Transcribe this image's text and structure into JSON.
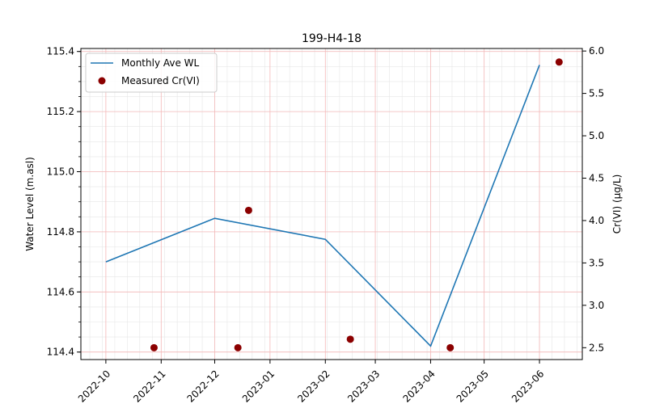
{
  "chart_data": {
    "type": "line",
    "title": "199-H4-18",
    "xlabel": "",
    "ylabel_left": "Water Level (m.asl)",
    "ylabel_right": "Cr(VI) (µg/L)",
    "x_tick_labels": [
      "2022-10",
      "2022-11",
      "2022-12",
      "2023-01",
      "2023-02",
      "2023-03",
      "2023-04",
      "2023-05",
      "2023-06"
    ],
    "x_tick_dates": [
      "2022-10-01",
      "2022-11-01",
      "2022-12-01",
      "2023-01-01",
      "2023-02-01",
      "2023-03-01",
      "2023-04-01",
      "2023-05-01",
      "2023-06-01"
    ],
    "xlim": [
      "2022-09-17",
      "2023-06-25"
    ],
    "ylim_left": [
      114.375,
      115.41
    ],
    "ylim_right": [
      2.36,
      6.03
    ],
    "left_ticks": [
      "114.4",
      "114.6",
      "114.8",
      "115.0",
      "115.2",
      "115.4"
    ],
    "right_ticks": [
      "2.5",
      "3.0",
      "3.5",
      "4.0",
      "4.5",
      "5.0",
      "5.5",
      "6.0"
    ],
    "grid": true,
    "legend_position": "upper-left",
    "series": [
      {
        "name": "Monthly Ave WL",
        "axis": "left",
        "kind": "line",
        "color": "#1f77b4",
        "points": [
          {
            "x": "2022-10-01",
            "y": 114.7
          },
          {
            "x": "2022-12-01",
            "y": 114.845
          },
          {
            "x": "2023-02-01",
            "y": 114.775
          },
          {
            "x": "2023-04-01",
            "y": 114.42
          },
          {
            "x": "2023-06-01",
            "y": 115.355
          }
        ]
      },
      {
        "name": "Measured Cr(VI)",
        "axis": "right",
        "kind": "scatter",
        "color": "#8b0000",
        "points": [
          {
            "x": "2022-10-28",
            "y": 2.5
          },
          {
            "x": "2022-12-14",
            "y": 2.5
          },
          {
            "x": "2022-12-20",
            "y": 4.12
          },
          {
            "x": "2023-02-15",
            "y": 2.6
          },
          {
            "x": "2023-04-12",
            "y": 2.5
          },
          {
            "x": "2023-06-12",
            "y": 5.87
          }
        ]
      }
    ]
  }
}
